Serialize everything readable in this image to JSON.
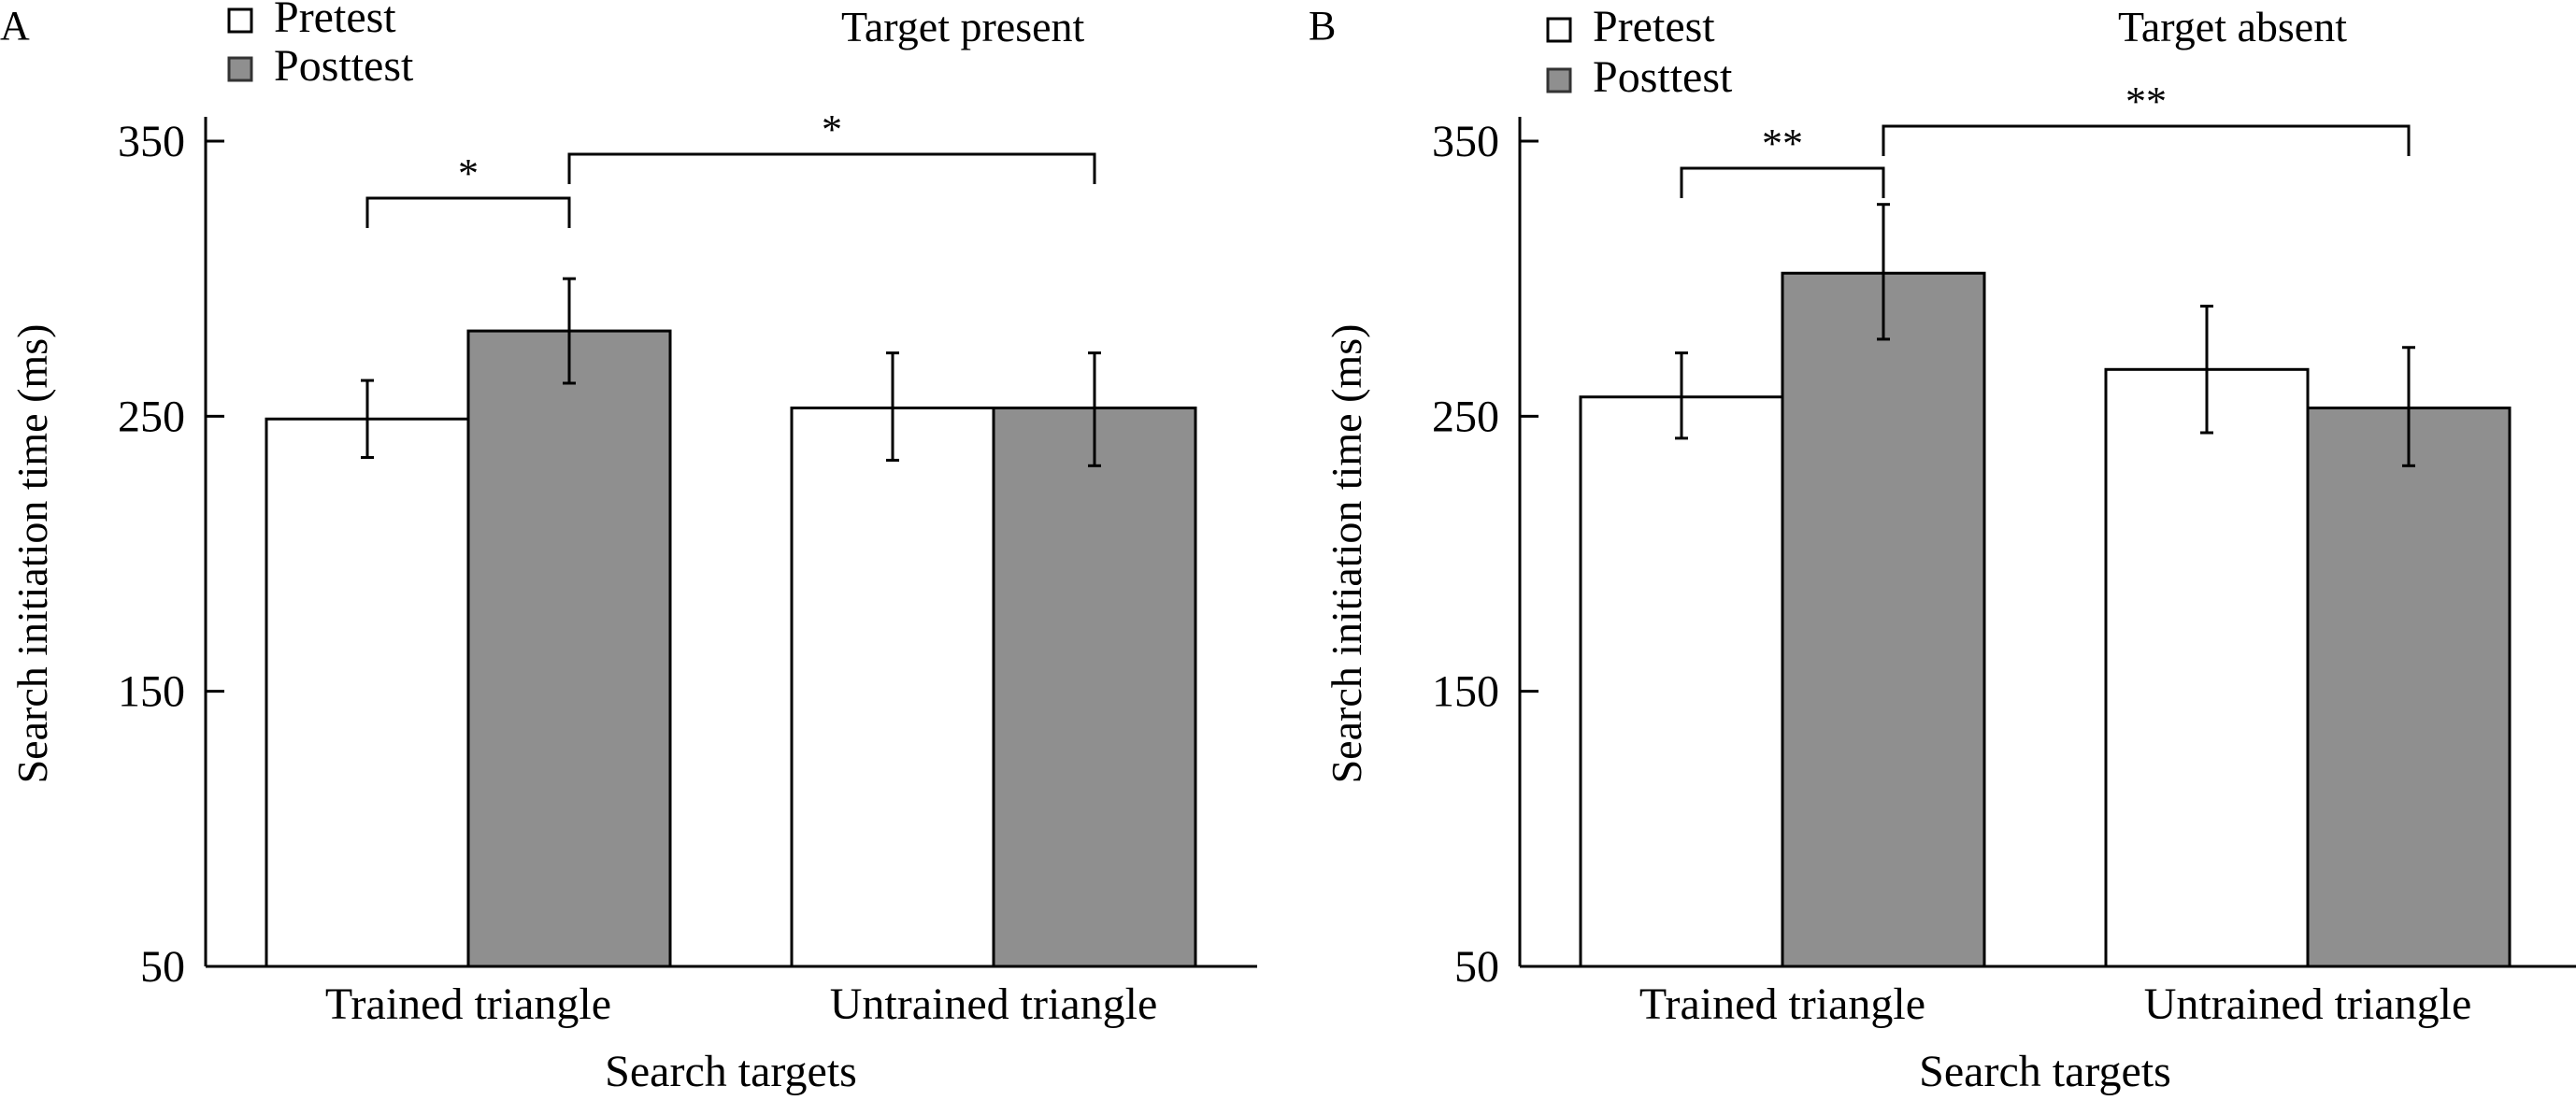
{
  "chart_data": [
    {
      "panel_label": "A",
      "type": "bar",
      "title": "Target present",
      "xlabel": "Search targets",
      "ylabel": "Search initiation time (ms)",
      "ylim": [
        50,
        350
      ],
      "yticks": [
        50,
        150,
        250,
        350
      ],
      "categories": [
        "Trained triangle",
        "Untrained triangle"
      ],
      "legend": {
        "position": "top-left",
        "entries": [
          "Pretest",
          "Posttest"
        ]
      },
      "series": [
        {
          "name": "Pretest",
          "color": "#ffffff",
          "values": [
            249,
            253
          ],
          "error_low": [
            235,
            234
          ],
          "error_high": [
            263,
            273
          ]
        },
        {
          "name": "Posttest",
          "color": "#8f8f8f",
          "values": [
            281,
            253
          ],
          "error_low": [
            262,
            232
          ],
          "error_high": [
            300,
            273
          ]
        }
      ],
      "significance": [
        {
          "from": "Trained triangle / Pretest",
          "to": "Trained triangle / Posttest",
          "label": "*"
        },
        {
          "from": "Trained triangle / Posttest",
          "to": "Untrained triangle / Posttest",
          "label": "*"
        }
      ]
    },
    {
      "panel_label": "B",
      "type": "bar",
      "title": "Target absent",
      "xlabel": "Search targets",
      "ylabel": "Search initiation time  (ms)",
      "ylim": [
        50,
        350
      ],
      "yticks": [
        50,
        150,
        250,
        350
      ],
      "categories": [
        "Trained triangle",
        "Untrained triangle"
      ],
      "legend": {
        "position": "top-left",
        "entries": [
          "Pretest",
          "Posttest"
        ]
      },
      "series": [
        {
          "name": "Pretest",
          "color": "#ffffff",
          "values": [
            257,
            267
          ],
          "error_low": [
            242,
            244
          ],
          "error_high": [
            273,
            290
          ]
        },
        {
          "name": "Posttest",
          "color": "#8f8f8f",
          "values": [
            302,
            253
          ],
          "error_low": [
            278,
            232
          ],
          "error_high": [
            327,
            275
          ]
        }
      ],
      "significance": [
        {
          "from": "Trained triangle / Pretest",
          "to": "Trained triangle / Posttest",
          "label": "**"
        },
        {
          "from": "Trained triangle / Posttest",
          "to": "Untrained triangle / Posttest",
          "label": "**"
        }
      ]
    }
  ]
}
